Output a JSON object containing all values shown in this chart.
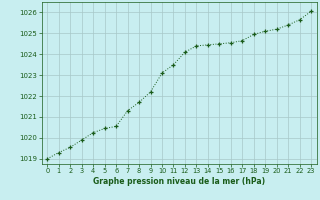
{
  "x": [
    0,
    1,
    2,
    3,
    4,
    5,
    6,
    7,
    8,
    9,
    10,
    11,
    12,
    13,
    14,
    15,
    16,
    17,
    18,
    19,
    20,
    21,
    22,
    23
  ],
  "y": [
    1019.0,
    1019.3,
    1019.55,
    1019.9,
    1020.25,
    1020.45,
    1020.55,
    1021.3,
    1021.7,
    1022.2,
    1023.1,
    1023.5,
    1024.1,
    1024.4,
    1024.45,
    1024.5,
    1024.55,
    1024.65,
    1024.95,
    1025.1,
    1025.2,
    1025.4,
    1025.65,
    1026.05
  ],
  "line_color": "#1a5c1a",
  "marker_color": "#1a5c1a",
  "bg_color": "#c8eef0",
  "grid_color": "#a8c8c8",
  "xlabel": "Graphe pression niveau de la mer (hPa)",
  "xlabel_color": "#1a5c1a",
  "tick_color": "#1a5c1a",
  "ylim": [
    1018.75,
    1026.5
  ],
  "yticks": [
    1019,
    1020,
    1021,
    1022,
    1023,
    1024,
    1025,
    1026
  ],
  "xticks": [
    0,
    1,
    2,
    3,
    4,
    5,
    6,
    7,
    8,
    9,
    10,
    11,
    12,
    13,
    14,
    15,
    16,
    17,
    18,
    19,
    20,
    21,
    22,
    23
  ]
}
